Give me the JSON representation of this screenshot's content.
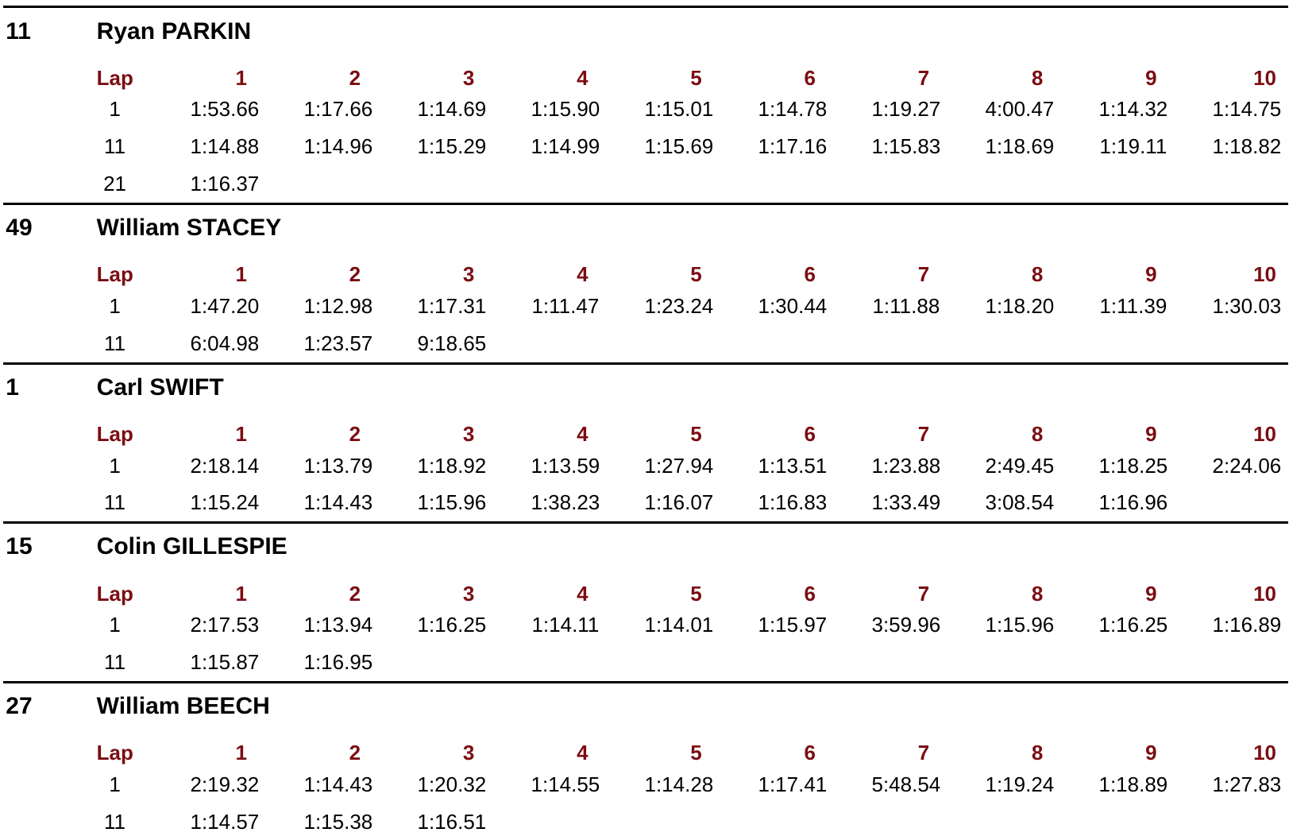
{
  "columns": [
    "Lap",
    "1",
    "2",
    "3",
    "4",
    "5",
    "6",
    "7",
    "8",
    "9",
    "10"
  ],
  "drivers": [
    {
      "number": "11",
      "name": "Ryan PARKIN",
      "rows": [
        {
          "lap": "1",
          "times": [
            "1:53.66",
            "1:17.66",
            "1:14.69",
            "1:15.90",
            "1:15.01",
            "1:14.78",
            "1:19.27",
            "4:00.47",
            "1:14.32",
            "1:14.75"
          ]
        },
        {
          "lap": "11",
          "times": [
            "1:14.88",
            "1:14.96",
            "1:15.29",
            "1:14.99",
            "1:15.69",
            "1:17.16",
            "1:15.83",
            "1:18.69",
            "1:19.11",
            "1:18.82"
          ]
        },
        {
          "lap": "21",
          "times": [
            "1:16.37"
          ]
        }
      ]
    },
    {
      "number": "49",
      "name": "William STACEY",
      "rows": [
        {
          "lap": "1",
          "times": [
            "1:47.20",
            "1:12.98",
            "1:17.31",
            "1:11.47",
            "1:23.24",
            "1:30.44",
            "1:11.88",
            "1:18.20",
            "1:11.39",
            "1:30.03"
          ]
        },
        {
          "lap": "11",
          "times": [
            "6:04.98",
            "1:23.57",
            "9:18.65"
          ]
        }
      ]
    },
    {
      "number": "1",
      "name": "Carl SWIFT",
      "rows": [
        {
          "lap": "1",
          "times": [
            "2:18.14",
            "1:13.79",
            "1:18.92",
            "1:13.59",
            "1:27.94",
            "1:13.51",
            "1:23.88",
            "2:49.45",
            "1:18.25",
            "2:24.06"
          ]
        },
        {
          "lap": "11",
          "times": [
            "1:15.24",
            "1:14.43",
            "1:15.96",
            "1:38.23",
            "1:16.07",
            "1:16.83",
            "1:33.49",
            "3:08.54",
            "1:16.96"
          ]
        }
      ]
    },
    {
      "number": "15",
      "name": "Colin GILLESPIE",
      "rows": [
        {
          "lap": "1",
          "times": [
            "2:17.53",
            "1:13.94",
            "1:16.25",
            "1:14.11",
            "1:14.01",
            "1:15.97",
            "3:59.96",
            "1:15.96",
            "1:16.25",
            "1:16.89"
          ]
        },
        {
          "lap": "11",
          "times": [
            "1:15.87",
            "1:16.95"
          ]
        }
      ]
    },
    {
      "number": "27",
      "name": "William BEECH",
      "rows": [
        {
          "lap": "1",
          "times": [
            "2:19.32",
            "1:14.43",
            "1:20.32",
            "1:14.55",
            "1:14.28",
            "1:17.41",
            "5:48.54",
            "1:19.24",
            "1:18.89",
            "1:27.83"
          ]
        },
        {
          "lap": "11",
          "times": [
            "1:14.57",
            "1:15.38",
            "1:16.51"
          ]
        }
      ]
    }
  ]
}
